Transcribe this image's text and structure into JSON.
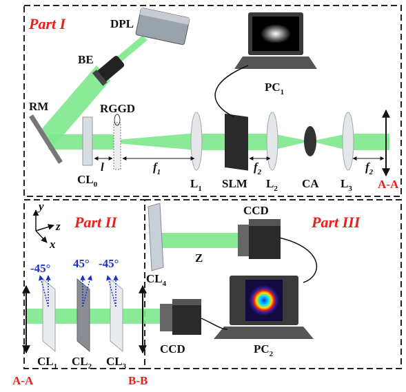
{
  "parts": [
    "Part I",
    "Part II",
    "Part III"
  ],
  "components": {
    "dpl": "DPL",
    "be": "BE",
    "rm": "RM",
    "rggd": "RGGD",
    "pc1": {
      "text": "PC",
      "sub": "1"
    },
    "cl0": {
      "text": "CL",
      "sub": "0"
    },
    "l": "l",
    "f1": {
      "text": "f",
      "sub": "1"
    },
    "l1": {
      "text": "L",
      "sub": "1"
    },
    "slm": "SLM",
    "f2a": {
      "text": "f",
      "sub": "2"
    },
    "l2": {
      "text": "L",
      "sub": "2"
    },
    "ca": "CA",
    "l3": {
      "text": "L",
      "sub": "3"
    },
    "f2b": {
      "text": "f",
      "sub": "2"
    },
    "ccd_top": "CCD",
    "z": "Z",
    "cl4": {
      "text": "CL",
      "sub": "4"
    },
    "ccd_bottom": "CCD",
    "pc2": {
      "text": "PC",
      "sub": "2"
    },
    "cl1": {
      "text": "CL",
      "sub": "1"
    },
    "cl2": {
      "text": "CL",
      "sub": "2"
    },
    "cl3": {
      "text": "CL",
      "sub": "3"
    }
  },
  "axes": [
    "y",
    "z",
    "x"
  ],
  "angles": [
    "-45°",
    "45°",
    "-45°"
  ],
  "planes": [
    "A-A",
    "A-A",
    "B-B"
  ]
}
